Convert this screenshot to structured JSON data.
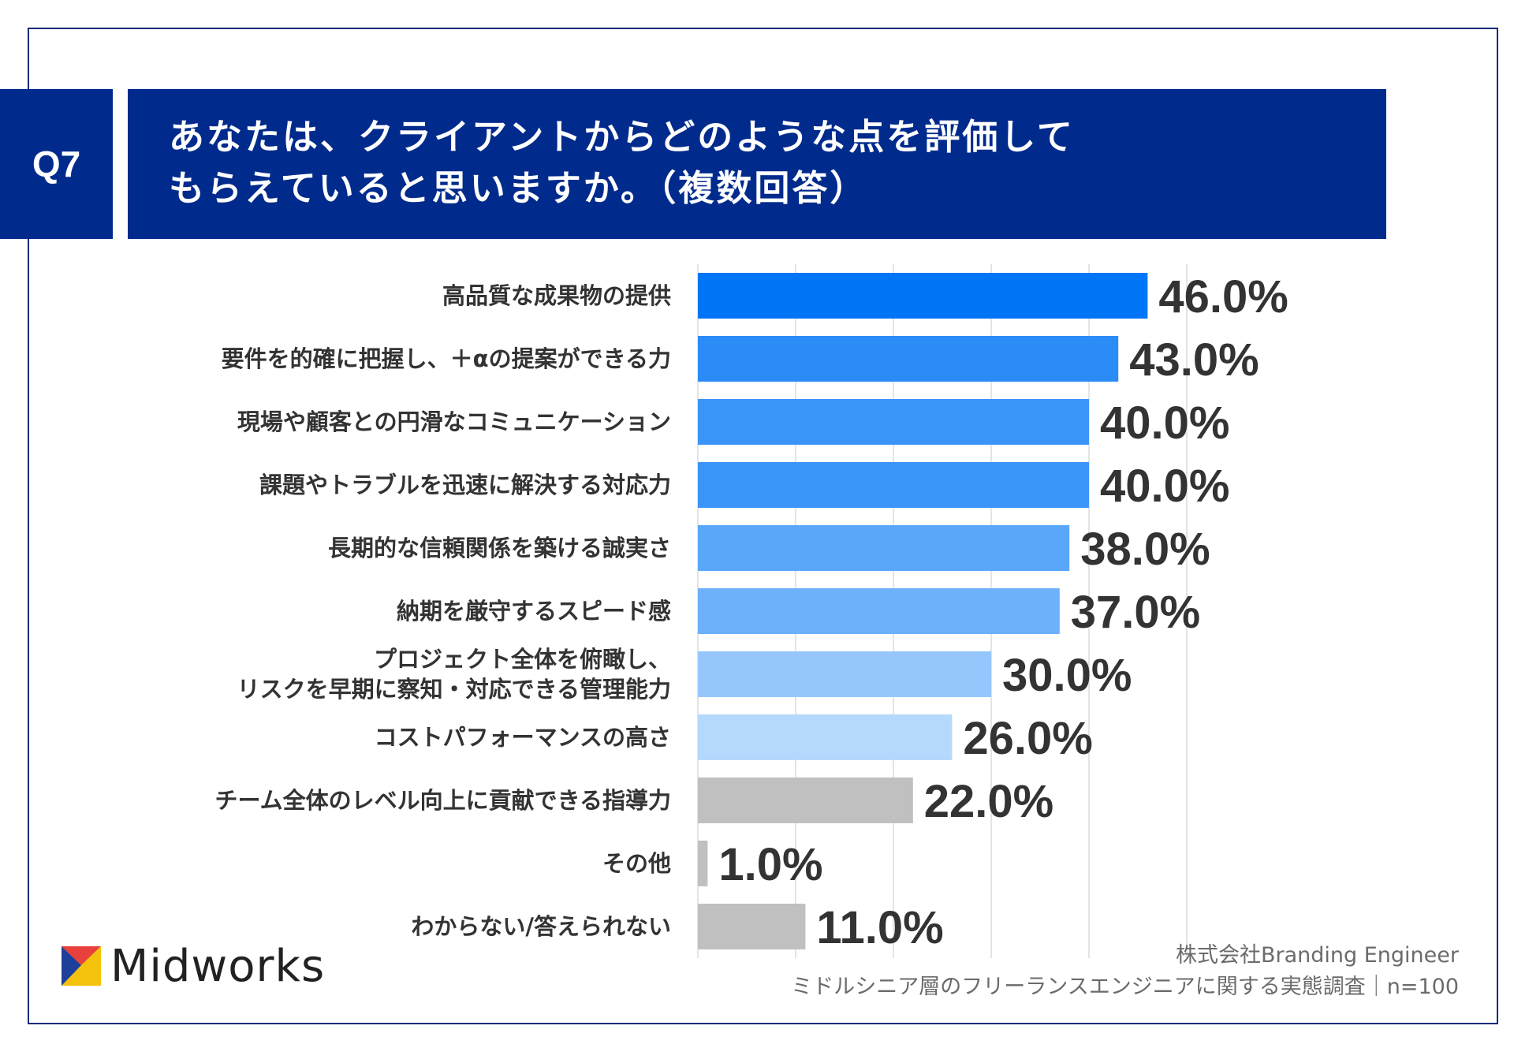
{
  "header": {
    "q_label": "Q7",
    "title_lines": [
      "あなたは、クライアントからどのような点を評価して",
      "もらえていると思いますか。（複数回答）"
    ]
  },
  "chart_data": {
    "type": "bar",
    "orientation": "horizontal",
    "title": "あなたは、クライアントからどのような点を評価してもらえていると思いますか。（複数回答）",
    "categories": [
      [
        "高品質な成果物の提供"
      ],
      [
        "要件を的確に把握し、＋αの提案ができる力"
      ],
      [
        "現場や顧客との円滑なコミュニケーション"
      ],
      [
        "課題やトラブルを迅速に解決する対応力"
      ],
      [
        "長期的な信頼関係を築ける誠実さ"
      ],
      [
        "納期を厳守するスピード感"
      ],
      [
        "プロジェクト全体を俯瞰し、",
        "リスクを早期に察知・対応できる管理能力"
      ],
      [
        "コストパフォーマンスの高さ"
      ],
      [
        "チーム全体のレベル向上に貢献できる指導力"
      ],
      [
        "その他"
      ],
      [
        "わからない/答えられない"
      ]
    ],
    "values": [
      46.0,
      43.0,
      40.0,
      40.0,
      38.0,
      37.0,
      30.0,
      26.0,
      22.0,
      1.0,
      11.0
    ],
    "value_labels": [
      "46.0%",
      "43.0%",
      "40.0%",
      "40.0%",
      "38.0%",
      "37.0%",
      "30.0%",
      "26.0%",
      "22.0%",
      "1.0%",
      "11.0%"
    ],
    "colors": [
      "#0075f5",
      "#2b8cf8",
      "#3b95f8",
      "#3b95f8",
      "#5aa7fa",
      "#6cb1fa",
      "#96c7fc",
      "#b5d9fd",
      "#c0c0c0",
      "#c0c0c0",
      "#c0c0c0"
    ],
    "xlim": [
      0,
      50
    ],
    "grid": true,
    "gridline_step": 10
  },
  "footer": {
    "logo_text": "Midworks",
    "company": "株式会社Branding Engineer",
    "survey": "ミドルシニア層のフリーランスエンジニアに関する実態調査｜n=100"
  }
}
